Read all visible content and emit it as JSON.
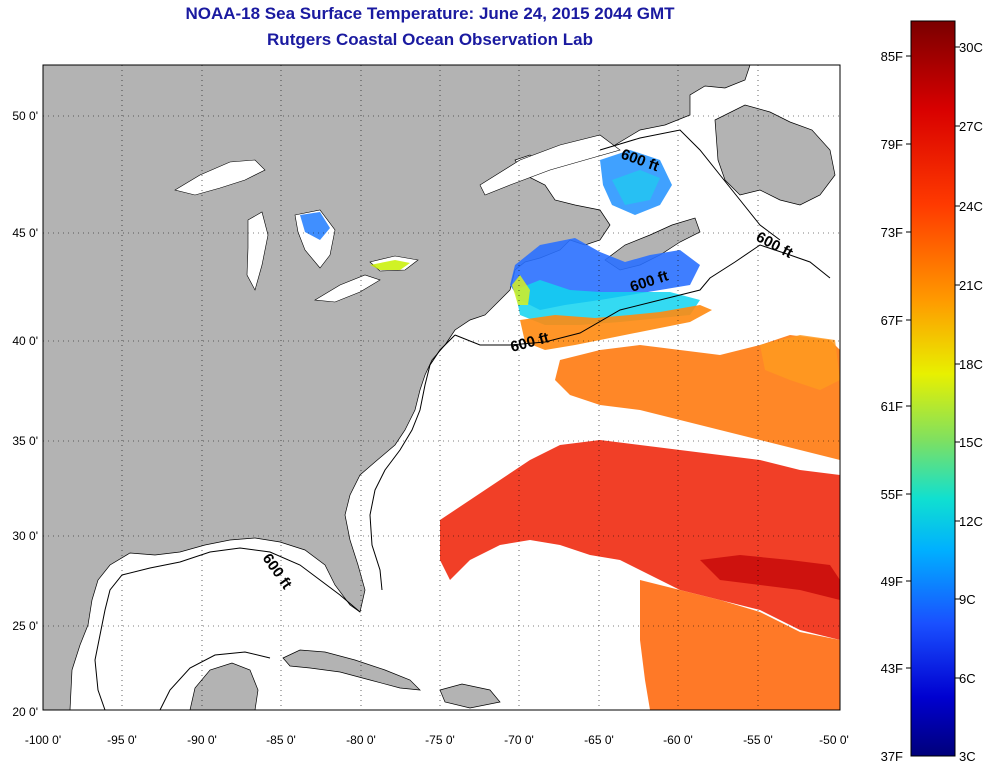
{
  "header": {
    "title": "NOAA-18 Sea Surface Temperature:  June 24, 2015 2044 GMT",
    "subtitle": "Rutgers Coastal Ocean Observation Lab"
  },
  "map": {
    "lon_ticks": [
      "-100 0'",
      "-95 0'",
      "-90 0'",
      "-85 0'",
      "-80 0'",
      "-75 0'",
      "-70 0'",
      "-65 0'",
      "-60 0'",
      "-55 0'",
      "-50 0'"
    ],
    "lat_ticks": [
      "20 0'",
      "25 0'",
      "30 0'",
      "35 0'",
      "40 0'",
      "45 0'",
      "50 0'"
    ],
    "lon_range": [
      -100,
      -50
    ],
    "lat_range": [
      20,
      52
    ],
    "contour_label": "600 ft",
    "land_color": "#b3b3b3",
    "no_data_color": "#ffffff"
  },
  "colorbar": {
    "fahrenheit_labels": [
      "85F",
      "79F",
      "73F",
      "67F",
      "61F",
      "55F",
      "49F",
      "43F",
      "37F"
    ],
    "celsius_labels": [
      "30C",
      "27C",
      "24C",
      "21C",
      "18C",
      "15C",
      "12C",
      "9C",
      "6C",
      "3C"
    ],
    "colors": [
      "#7a0000",
      "#e00000",
      "#ff5a00",
      "#ffc800",
      "#c8e61e",
      "#32dc96",
      "#00c8ff",
      "#1e64ff",
      "#0000c8",
      "#00007a"
    ]
  }
}
